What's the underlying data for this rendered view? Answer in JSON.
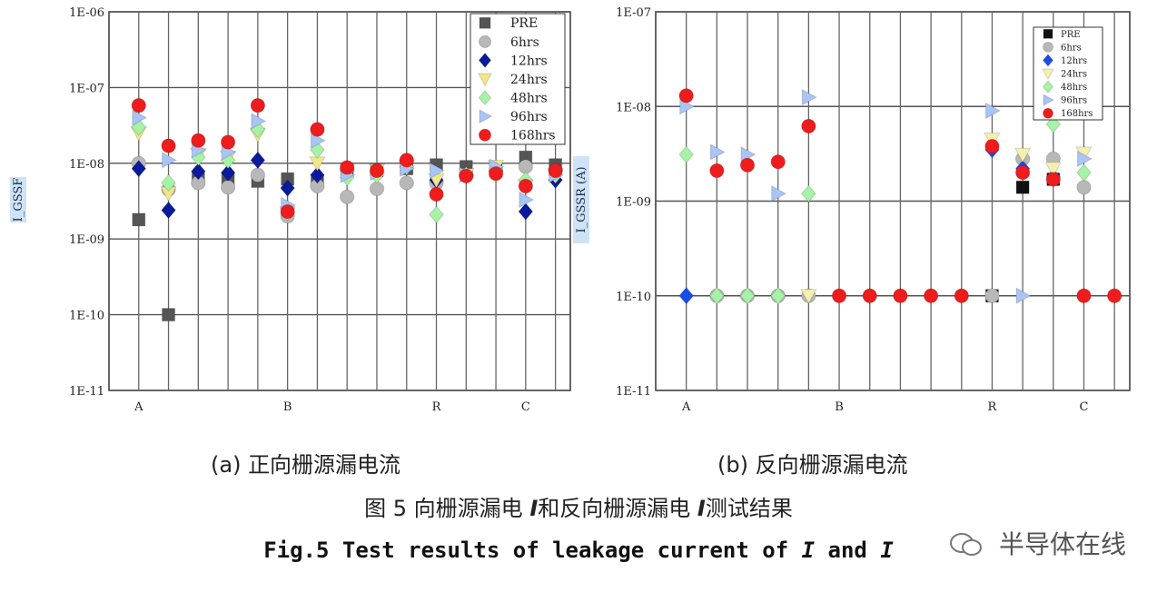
{
  "chart_data": [
    {
      "type": "scatter",
      "panel_label": "(a) 正向栅源漏电流",
      "ylabel": "I_GSSF",
      "yscale": "log",
      "ylim": [
        1e-11,
        1e-06
      ],
      "yticks": [
        "1E-11",
        "1E-10",
        "1E-09",
        "1E-08",
        "1E-07",
        "1E-06"
      ],
      "x_positions": 15,
      "x_tick_labels": [
        {
          "index": 0,
          "label": "A"
        },
        {
          "index": 5,
          "label": "B"
        },
        {
          "index": 10,
          "label": "R"
        },
        {
          "index": 13,
          "label": "C"
        }
      ],
      "legend": {
        "position": "top-right",
        "entries": [
          "PRE",
          "6hrs",
          "12hrs",
          "24hrs",
          "48hrs",
          "96hrs",
          "168hrs"
        ]
      },
      "series": [
        {
          "name": "PRE",
          "marker": "square",
          "color": "#555555",
          "values": [
            1.8e-09,
            1e-10,
            6.2e-09,
            6e-09,
            5.8e-09,
            6.2e-09,
            5.8e-09,
            8e-09,
            8e-09,
            8.5e-09,
            9.5e-09,
            9e-09,
            8e-09,
            1.2e-08,
            9.5e-09
          ]
        },
        {
          "name": "6hrs",
          "marker": "circle",
          "color": "#b8b8b8",
          "values": [
            1e-08,
            4.5e-09,
            5.5e-09,
            4.8e-09,
            7e-09,
            2e-09,
            5e-09,
            3.6e-09,
            4.6e-09,
            5.5e-09,
            5.5e-09,
            7e-09,
            8e-09,
            9e-09,
            8e-09
          ]
        },
        {
          "name": "12hrs",
          "marker": "diamond",
          "color": "#0a1a9c",
          "values": [
            8.5e-09,
            2.4e-09,
            7.8e-09,
            7.5e-09,
            1.1e-08,
            4.7e-09,
            7e-09,
            8e-09,
            7.6e-09,
            9e-09,
            6e-09,
            7e-09,
            7.8e-09,
            2.3e-09,
            6e-09
          ]
        },
        {
          "name": "24hrs",
          "marker": "triangle-down",
          "color": "#f2e68a",
          "values": [
            2.5e-08,
            4e-09,
            1.3e-08,
            1.2e-08,
            2.4e-08,
            2.2e-09,
            1e-08,
            7e-09,
            8e-09,
            9e-09,
            6e-09,
            7e-09,
            9e-09,
            5e-09,
            7e-09
          ]
        },
        {
          "name": "48hrs",
          "marker": "diamond",
          "color": "#a6f2a6",
          "values": [
            3e-08,
            5.5e-09,
            1.2e-08,
            1.1e-08,
            2.8e-08,
            2.5e-09,
            1.5e-08,
            6.5e-09,
            7e-09,
            9e-09,
            2.1e-09,
            7e-09,
            8e-09,
            6e-09,
            7e-09
          ]
        },
        {
          "name": "96hrs",
          "marker": "triangle-right",
          "color": "#a9c4f5",
          "values": [
            4e-08,
            1.1e-08,
            1.5e-08,
            1.4e-08,
            3.6e-08,
            2.8e-09,
            2e-08,
            7e-09,
            7.5e-09,
            8.5e-09,
            8e-09,
            7e-09,
            9e-09,
            3.3e-09,
            7e-09
          ]
        },
        {
          "name": "168hrs",
          "marker": "circle",
          "color": "#ee1c1c",
          "values": [
            5.8e-08,
            1.7e-08,
            2e-08,
            1.9e-08,
            5.8e-08,
            2.3e-09,
            2.8e-08,
            8.8e-09,
            8e-09,
            1.1e-08,
            3.9e-09,
            6.8e-09,
            7.3e-09,
            5e-09,
            8e-09
          ]
        }
      ]
    },
    {
      "type": "scatter",
      "panel_label": "(b) 反向栅源漏电流",
      "ylabel": "I_GSSR (A)",
      "yscale": "log",
      "ylim": [
        1e-11,
        1e-07
      ],
      "yticks": [
        "1E-11",
        "1E-10",
        "1E-09",
        "1E-08",
        "1E-07"
      ],
      "x_positions": 15,
      "x_tick_labels": [
        {
          "index": 0,
          "label": "A"
        },
        {
          "index": 5,
          "label": "B"
        },
        {
          "index": 10,
          "label": "R"
        },
        {
          "index": 13,
          "label": "C"
        }
      ],
      "legend": {
        "position": "top-right",
        "entries": [
          "PRE",
          "6hrs",
          "12hrs",
          "24hrs",
          "48hrs",
          "96hrs",
          "168hrs"
        ]
      },
      "series": [
        {
          "name": "PRE",
          "marker": "square",
          "color": "#111111",
          "values": [
            null,
            null,
            null,
            null,
            null,
            null,
            null,
            null,
            null,
            null,
            1e-10,
            1.4e-09,
            1.7e-09,
            null,
            null
          ]
        },
        {
          "name": "6hrs",
          "marker": "circle",
          "color": "#b8b8b8",
          "values": [
            null,
            1e-10,
            1e-10,
            1e-10,
            1e-10,
            null,
            null,
            null,
            null,
            null,
            1e-10,
            2.8e-09,
            2.8e-09,
            1.4e-09,
            null
          ]
        },
        {
          "name": "12hrs",
          "marker": "diamond",
          "color": "#1a4de8",
          "values": [
            1e-10,
            null,
            null,
            null,
            null,
            null,
            null,
            null,
            null,
            null,
            3.5e-09,
            2.2e-09,
            1.8e-09,
            null,
            null
          ]
        },
        {
          "name": "24hrs",
          "marker": "triangle-down",
          "color": "#f5efb0",
          "values": [
            null,
            null,
            null,
            null,
            1e-10,
            null,
            null,
            null,
            null,
            null,
            4.5e-09,
            3.1e-09,
            2.2e-09,
            3.2e-09,
            null
          ]
        },
        {
          "name": "48hrs",
          "marker": "diamond",
          "color": "#a6f2a6",
          "values": [
            3.1e-09,
            1e-10,
            1e-10,
            1e-10,
            1.2e-09,
            null,
            null,
            null,
            null,
            null,
            null,
            null,
            6.5e-09,
            2e-09,
            null
          ]
        },
        {
          "name": "96hrs",
          "marker": "triangle-right",
          "color": "#a9c4f5",
          "values": [
            1e-08,
            3.3e-09,
            3.1e-09,
            1.2e-09,
            1.25e-08,
            null,
            null,
            null,
            null,
            null,
            9e-09,
            1e-10,
            null,
            2.8e-09,
            null
          ]
        },
        {
          "name": "168hrs",
          "marker": "circle",
          "color": "#ee1c1c",
          "values": [
            1.3e-08,
            2.1e-09,
            2.4e-09,
            2.6e-09,
            6.2e-09,
            1e-10,
            1e-10,
            1e-10,
            1e-10,
            1e-10,
            3.8e-09,
            2e-09,
            1.7e-09,
            1e-10,
            1e-10
          ]
        }
      ]
    }
  ],
  "captions": {
    "panel_a": "(a) 正向栅源漏电流",
    "panel_b": "(b) 反向栅源漏电流",
    "figure_zh_pre": "图 5 向栅源漏电 ",
    "figure_zh_sym1": "I",
    "figure_zh_mid": "和反向栅源漏电 ",
    "figure_zh_sym2": "I",
    "figure_zh_post": "测试结果",
    "figure_en_pre": "Fig.5 Test results of leakage current of ",
    "figure_en_sym1": "I",
    "figure_en_mid": " and ",
    "figure_en_sym2": "I"
  },
  "watermark": {
    "text": "半导体在线",
    "icon": "wechat-icon"
  }
}
